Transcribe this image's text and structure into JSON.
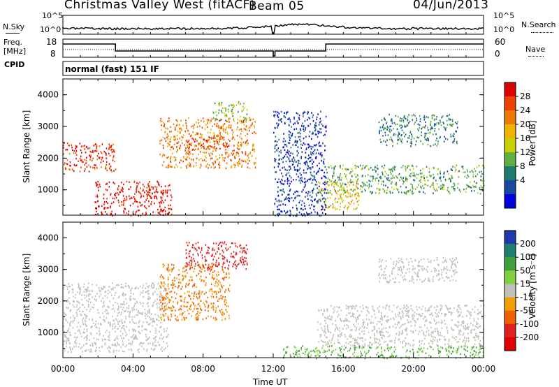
{
  "header": {
    "title": "Christmas Valley West (fitACF)",
    "beam": "Beam 05",
    "date": "04/Jun/2013"
  },
  "strip": {
    "nsky_label": "N.Sky",
    "nsky_ticks": [
      "10^5",
      "10^0"
    ],
    "nsearch_label": "N.Search",
    "freq_label": "Freq.",
    "freq_unit": "[MHz]",
    "freq_ticks": [
      "18",
      "8"
    ],
    "nave_ticks": [
      "60",
      "0"
    ],
    "nave_label": "Nave",
    "cpid_label": "CPID",
    "cpid_value": "normal (fast) 151 IF"
  },
  "panels": {
    "ylabel": "Slant Range [km]",
    "yticks": [
      "4000",
      "3000",
      "2000",
      "1000"
    ],
    "xticks": [
      "00:00",
      "04:00",
      "08:00",
      "12:00",
      "16:00",
      "20:00",
      "00:00"
    ],
    "xlabel": "Time UT"
  },
  "power_scale": {
    "label": "Power [dB]",
    "ticks": [
      "28",
      "24",
      "20",
      "16",
      "12",
      "8",
      "4"
    ],
    "colors": [
      "#e00000",
      "#f04000",
      "#f07a00",
      "#f0b400",
      "#c8d000",
      "#60b040",
      "#207a70",
      "#1848a0",
      "#0000e0"
    ]
  },
  "velocity_scale": {
    "label": "Velocity [m s⁻¹]",
    "ticks": [
      "200",
      "100",
      "50",
      "15",
      "-15",
      "-50",
      "-100",
      "-200"
    ],
    "colors": [
      "#2038b0",
      "#208070",
      "#40a040",
      "#80d040",
      "#c0c0b8",
      "#f0a000",
      "#f06000",
      "#e02020",
      "#e00000"
    ]
  },
  "chart_data": [
    {
      "type": "heatmap",
      "name": "power",
      "xlabel": "Time UT",
      "ylabel": "Slant Range [km]",
      "xlim": [
        0,
        24
      ],
      "ylim": [
        200,
        4500
      ],
      "regions": [
        {
          "t": [
            0.0,
            3.0
          ],
          "r": [
            1600,
            2500
          ],
          "v": 26
        },
        {
          "t": [
            1.8,
            6.2
          ],
          "r": [
            200,
            1300
          ],
          "v": 28
        },
        {
          "t": [
            5.5,
            11.0
          ],
          "r": [
            1700,
            3300
          ],
          "v": 22
        },
        {
          "t": [
            7.0,
            9.5
          ],
          "r": [
            2300,
            2700
          ],
          "v": 26
        },
        {
          "t": [
            8.5,
            10.5
          ],
          "r": [
            3200,
            3800
          ],
          "v": 14
        },
        {
          "t": [
            14.5,
            17.0
          ],
          "r": [
            400,
            1300
          ],
          "v": 18
        },
        {
          "t": [
            15.0,
            24.0
          ],
          "r": [
            900,
            1800
          ],
          "v": 12
        },
        {
          "t": [
            18.0,
            22.5
          ],
          "r": [
            2400,
            3400
          ],
          "v": 10
        },
        {
          "t": [
            12.0,
            15.0
          ],
          "r": [
            200,
            3500
          ],
          "v": 6
        }
      ]
    },
    {
      "type": "heatmap",
      "name": "velocity",
      "xlabel": "Time UT",
      "ylabel": "Slant Range [km]",
      "xlim": [
        0,
        24
      ],
      "ylim": [
        200,
        4500
      ],
      "regions": [
        {
          "t": [
            0.0,
            6.0
          ],
          "r": [
            400,
            2600
          ],
          "v": 0
        },
        {
          "t": [
            5.5,
            9.5
          ],
          "r": [
            1400,
            3200
          ],
          "v": -50
        },
        {
          "t": [
            7.0,
            10.5
          ],
          "r": [
            3000,
            3900
          ],
          "v": -150
        },
        {
          "t": [
            14.5,
            24.0
          ],
          "r": [
            600,
            1900
          ],
          "v": 0
        },
        {
          "t": [
            18.0,
            22.5
          ],
          "r": [
            2600,
            3400
          ],
          "v": 0
        },
        {
          "t": [
            12.5,
            24.0
          ],
          "r": [
            200,
            600
          ],
          "v": 30
        }
      ]
    }
  ]
}
